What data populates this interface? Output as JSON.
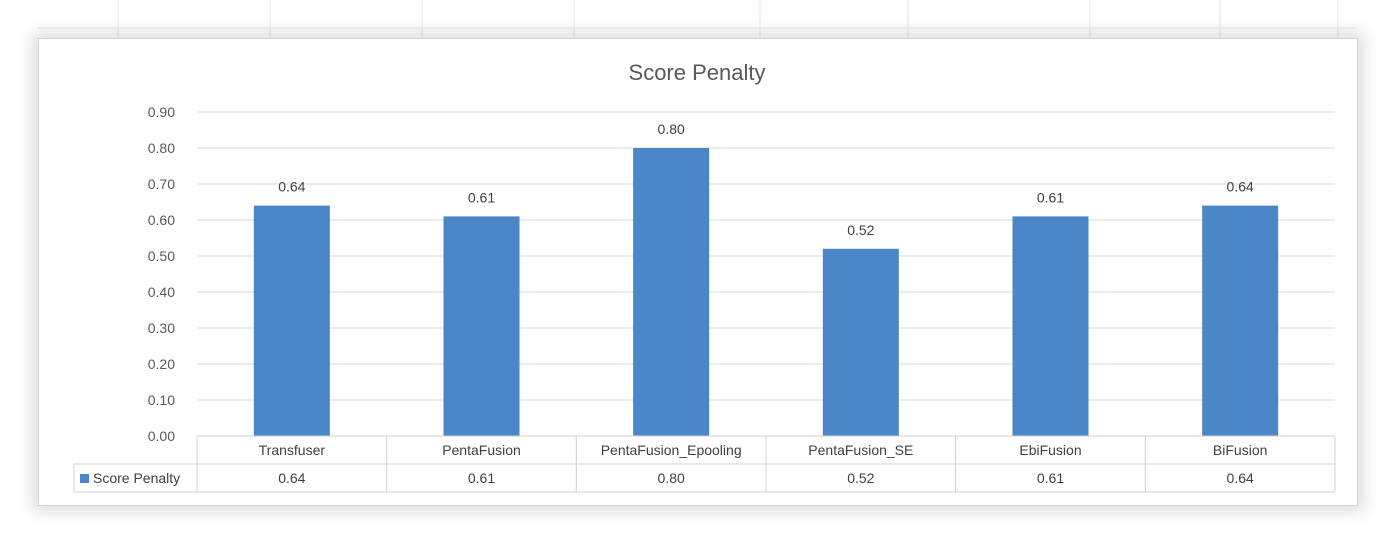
{
  "chart_data": {
    "type": "bar",
    "title": "Score Penalty",
    "categories": [
      "Transfuser",
      "PentaFusion",
      "PentaFusion_Epooling",
      "PentaFusion_SE",
      "EbiFusion",
      "BiFusion"
    ],
    "series": [
      {
        "name": "Score Penalty",
        "values": [
          0.64,
          0.61,
          0.8,
          0.52,
          0.61,
          0.64
        ],
        "color": "#4a86c8"
      }
    ],
    "data_labels": [
      "0.64",
      "0.61",
      "0.80",
      "0.52",
      "0.61",
      "0.64"
    ],
    "ylim": [
      0,
      0.9
    ],
    "yticks": [
      "0.00",
      "0.10",
      "0.20",
      "0.30",
      "0.40",
      "0.50",
      "0.60",
      "0.70",
      "0.80",
      "0.90"
    ],
    "grid": true,
    "legend": "data-table",
    "data_table": true
  }
}
